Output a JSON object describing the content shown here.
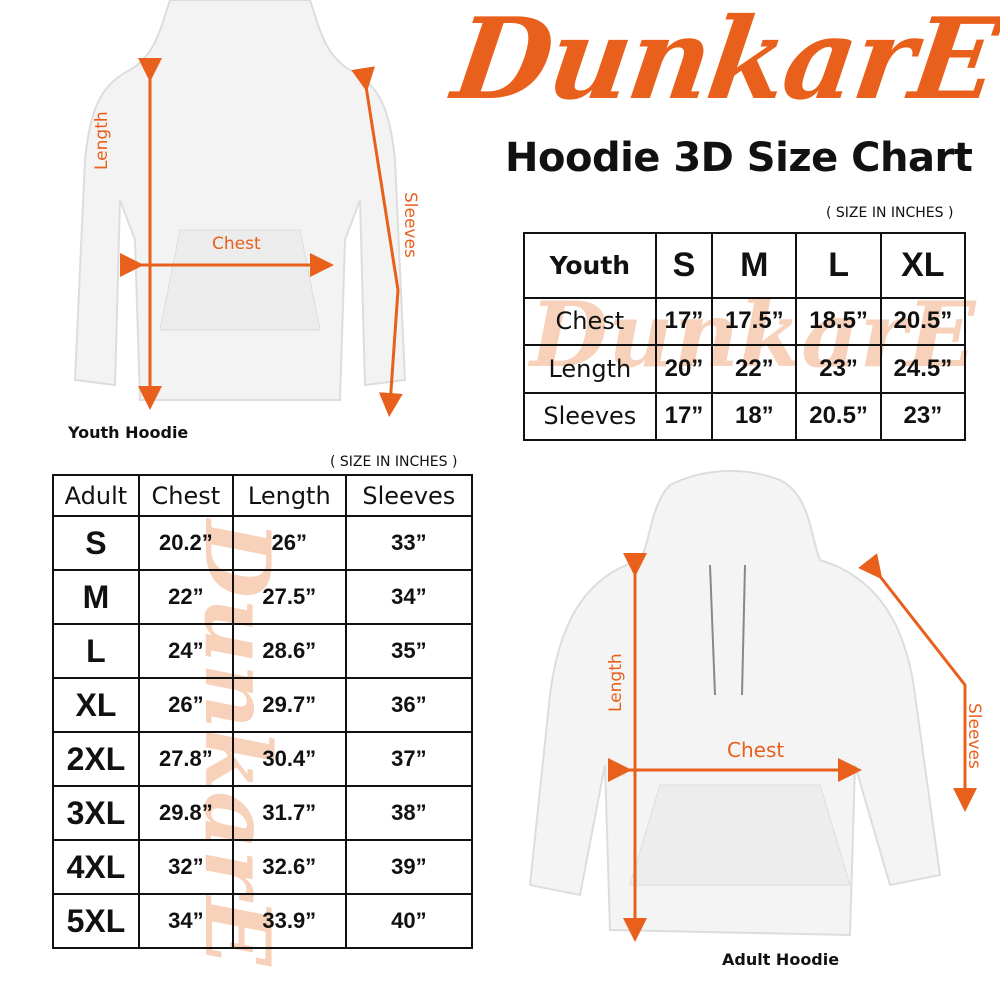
{
  "brand": {
    "logo_text": "DunkarE",
    "accent": "#e8601c",
    "watermark": "#f6c9ad"
  },
  "title": "Hoodie 3D Size Chart",
  "youth": {
    "units": "( SIZE IN INCHES )",
    "image_label": "Youth Hoodie",
    "arrows": {
      "length": "Length",
      "chest": "Chest",
      "sleeves": "Sleeves"
    },
    "headers": [
      "Youth",
      "S",
      "M",
      "L",
      "XL"
    ],
    "rows": [
      [
        "Chest",
        "17”",
        "17.5”",
        "18.5”",
        "20.5”"
      ],
      [
        "Length",
        "20”",
        "22”",
        "23”",
        "24.5”"
      ],
      [
        "Sleeves",
        "17”",
        "18”",
        "20.5”",
        "23”"
      ]
    ]
  },
  "adult": {
    "units": "( SIZE IN INCHES )",
    "image_label": "Adult Hoodie",
    "arrows": {
      "length": "Length",
      "chest": "Chest",
      "sleeves": "Sleeves"
    },
    "headers": [
      "Adult",
      "Chest",
      "Length",
      "Sleeves"
    ],
    "rows": [
      [
        "S",
        "20.2”",
        "26”",
        "33”"
      ],
      [
        "M",
        "22”",
        "27.5”",
        "34”"
      ],
      [
        "L",
        "24”",
        "28.6”",
        "35”"
      ],
      [
        "XL",
        "26”",
        "29.7”",
        "36”"
      ],
      [
        "2XL",
        "27.8”",
        "30.4”",
        "37”"
      ],
      [
        "3XL",
        "29.8”",
        "31.7”",
        "38”"
      ],
      [
        "4XL",
        "32”",
        "32.6”",
        "39”"
      ],
      [
        "5XL",
        "34”",
        "33.9”",
        "40”"
      ]
    ]
  }
}
